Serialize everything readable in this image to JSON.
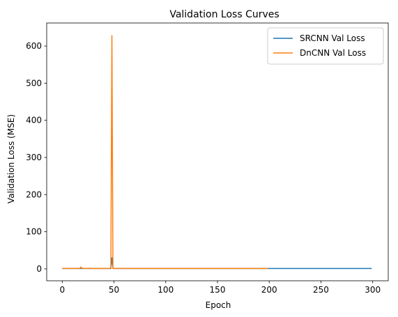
{
  "chart_data": {
    "type": "line",
    "title": "Validation Loss Curves",
    "xlabel": "Epoch",
    "ylabel": "Validation Loss (MSE)",
    "xlim": [
      -15,
      315
    ],
    "ylim": [
      -32,
      662
    ],
    "xticks": [
      0,
      50,
      100,
      150,
      200,
      250,
      300
    ],
    "yticks": [
      0,
      100,
      200,
      300,
      400,
      500,
      600
    ],
    "grid": false,
    "legend_position": "top-right",
    "series": [
      {
        "name": "SRCNN Val Loss",
        "color": "#1f77b4",
        "points": [
          [
            0,
            1
          ],
          [
            46,
            1
          ],
          [
            47,
            1
          ],
          [
            48,
            30
          ],
          [
            49,
            1
          ],
          [
            100,
            1
          ],
          [
            150,
            1
          ],
          [
            200,
            1
          ],
          [
            250,
            1
          ],
          [
            299,
            1
          ]
        ]
      },
      {
        "name": "DnCNN Val Loss",
        "color": "#ff7f0e",
        "points": [
          [
            0,
            1
          ],
          [
            17,
            1
          ],
          [
            18,
            5
          ],
          [
            19,
            2
          ],
          [
            20,
            1
          ],
          [
            26,
            1
          ],
          [
            27,
            2
          ],
          [
            28,
            1
          ],
          [
            46,
            1
          ],
          [
            47,
            3
          ],
          [
            48,
            628
          ],
          [
            49,
            1
          ],
          [
            50,
            1
          ],
          [
            100,
            1
          ],
          [
            150,
            1
          ],
          [
            199,
            1
          ]
        ]
      }
    ]
  }
}
